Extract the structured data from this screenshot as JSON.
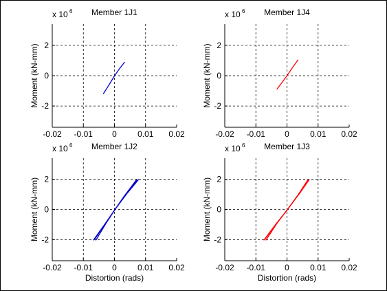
{
  "chart_data": [
    {
      "type": "line",
      "title": "Member 1J1",
      "xlabel": "",
      "ylabel": "Moment (kN-mm)",
      "exponent_base": "x 10",
      "exponent_power": "6",
      "xlim": [
        -0.02,
        0.02
      ],
      "ylim": [
        -3.4,
        3.4
      ],
      "xticks": [
        -0.02,
        -0.01,
        0,
        0.01,
        0.02
      ],
      "xtick_labels": [
        "-0.02",
        "-0.01",
        "0",
        "0.01",
        "0.02"
      ],
      "yticks": [
        -2,
        0,
        2
      ],
      "ytick_labels": [
        "-2",
        "0",
        "2"
      ],
      "grid": true,
      "color": "#0000cc",
      "series": [
        {
          "x": [
            -0.0036,
            -0.0018,
            0,
            0.0016,
            0.0033
          ],
          "y": [
            -1.2,
            -0.62,
            -0.02,
            0.45,
            0.9
          ]
        }
      ]
    },
    {
      "type": "line",
      "title": "Member 1J4",
      "xlabel": "",
      "ylabel": "Moment (kN-mm)",
      "exponent_base": "x 10",
      "exponent_power": "6",
      "xlim": [
        -0.02,
        0.02
      ],
      "ylim": [
        -3.4,
        3.4
      ],
      "xticks": [
        -0.02,
        -0.01,
        0,
        0.01,
        0.02
      ],
      "xtick_labels": [
        "-0.02",
        "-0.01",
        "0",
        "0.01",
        "0.02"
      ],
      "yticks": [
        -2,
        0,
        2
      ],
      "ytick_labels": [
        "-2",
        "0",
        "2"
      ],
      "grid": true,
      "color": "#ff0000",
      "series": [
        {
          "x": [
            -0.0033,
            -0.0016,
            0,
            0.002,
            0.0036
          ],
          "y": [
            -0.9,
            -0.45,
            0.0,
            0.6,
            1.05
          ]
        }
      ]
    },
    {
      "type": "line",
      "title": "Member 1J2",
      "xlabel": "Distortion (rads)",
      "ylabel": "Moment (kN-mm)",
      "exponent_base": "x 10",
      "exponent_power": "6",
      "xlim": [
        -0.02,
        0.02
      ],
      "ylim": [
        -3.4,
        3.4
      ],
      "xticks": [
        -0.02,
        -0.01,
        0,
        0.01,
        0.02
      ],
      "xtick_labels": [
        "-0.02",
        "-0.01",
        "0",
        "0.01",
        "0.02"
      ],
      "yticks": [
        -2,
        0,
        2
      ],
      "ytick_labels": [
        "-2",
        "0",
        "2"
      ],
      "grid": true,
      "color": "#0000cc",
      "series": [
        {
          "x": [
            -0.0068,
            -0.003,
            0,
            0.003,
            0.0072
          ],
          "y": [
            -2.05,
            -0.95,
            -0.05,
            0.85,
            2.0
          ]
        },
        {
          "x": [
            -0.006,
            -0.0025,
            0.0005,
            0.004,
            0.0078
          ],
          "y": [
            -2.05,
            -0.85,
            0.1,
            1.05,
            2.0
          ]
        },
        {
          "x": [
            -0.0064,
            -0.0028,
            0.0002,
            0.0035,
            0.0075
          ],
          "y": [
            -2.0,
            -0.9,
            0.0,
            0.95,
            1.98
          ]
        }
      ]
    },
    {
      "type": "line",
      "title": "Member 1J3",
      "xlabel": "Distortion (rads)",
      "ylabel": "Moment (kN-mm)",
      "exponent_base": "x 10",
      "exponent_power": "6",
      "xlim": [
        -0.02,
        0.02
      ],
      "ylim": [
        -3.4,
        3.4
      ],
      "xticks": [
        -0.02,
        -0.01,
        0,
        0.01,
        0.02
      ],
      "xtick_labels": [
        "-0.02",
        "-0.01",
        "0",
        "0.01",
        "0.02"
      ],
      "yticks": [
        -2,
        0,
        2
      ],
      "ytick_labels": [
        "-2",
        "0",
        "2"
      ],
      "grid": true,
      "color": "#ff0000",
      "series": [
        {
          "x": [
            -0.0075,
            -0.0035,
            0,
            0.0035,
            0.0068
          ],
          "y": [
            -2.05,
            -0.95,
            -0.05,
            0.95,
            2.0
          ]
        },
        {
          "x": [
            -0.0068,
            -0.003,
            0.0005,
            0.004,
            0.0072
          ],
          "y": [
            -2.05,
            -0.85,
            0.1,
            1.05,
            2.0
          ]
        },
        {
          "x": [
            -0.0072,
            -0.0032,
            0.0002,
            0.0037,
            0.007
          ],
          "y": [
            -2.0,
            -0.9,
            0.0,
            1.0,
            1.98
          ]
        }
      ]
    }
  ]
}
